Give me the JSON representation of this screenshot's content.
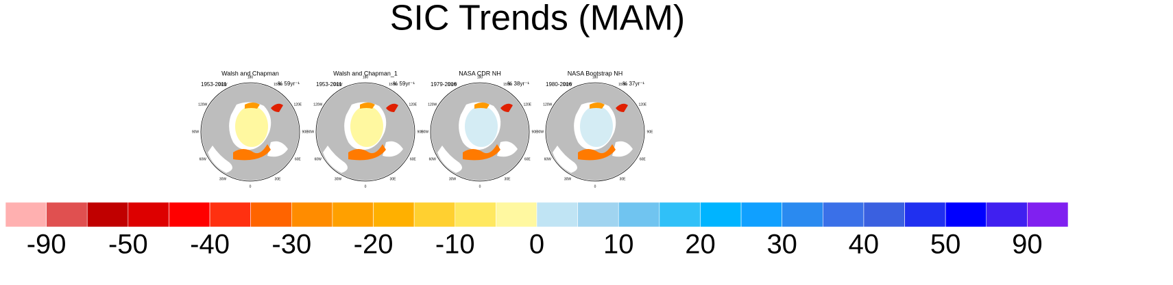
{
  "title": "SIC Trends (MAM)",
  "panels": [
    {
      "title": "Walsh and Chapman",
      "period": "1953-2011",
      "trend": "% 59yr⁻¹"
    },
    {
      "title": "Walsh and Chapman_1",
      "period": "1953-2011",
      "trend": "% 59yr⁻¹"
    },
    {
      "title": "NASA CDR NH",
      "period": "1979-2016",
      "trend": "% 38yr⁻¹"
    },
    {
      "title": "NASA Bootstrap NH",
      "period": "1980-2016",
      "trend": "% 37yr⁻¹"
    }
  ],
  "lon_labels": [
    "180",
    "150E",
    "120E",
    "90E",
    "60E",
    "30E",
    "0",
    "30W",
    "60W",
    "90W",
    "120W",
    "150W"
  ],
  "colorbar": {
    "colors": [
      "#ffb0b0",
      "#e05050",
      "#c00000",
      "#dd0000",
      "#ff0000",
      "#ff3010",
      "#ff6400",
      "#ff8c00",
      "#ffa000",
      "#ffb000",
      "#ffd030",
      "#ffe860",
      "#fff8a0",
      "#c0e4f4",
      "#a0d4f0",
      "#70c4f0",
      "#30c0f8",
      "#00b4ff",
      "#10a0ff",
      "#2a8af0",
      "#3a70e8",
      "#3a60e0",
      "#2030f0",
      "#0000ff",
      "#4020f0",
      "#8020f0"
    ],
    "labels": [
      -90,
      -50,
      -40,
      -30,
      -20,
      -10,
      0,
      10,
      20,
      30,
      40,
      50,
      90
    ]
  }
}
